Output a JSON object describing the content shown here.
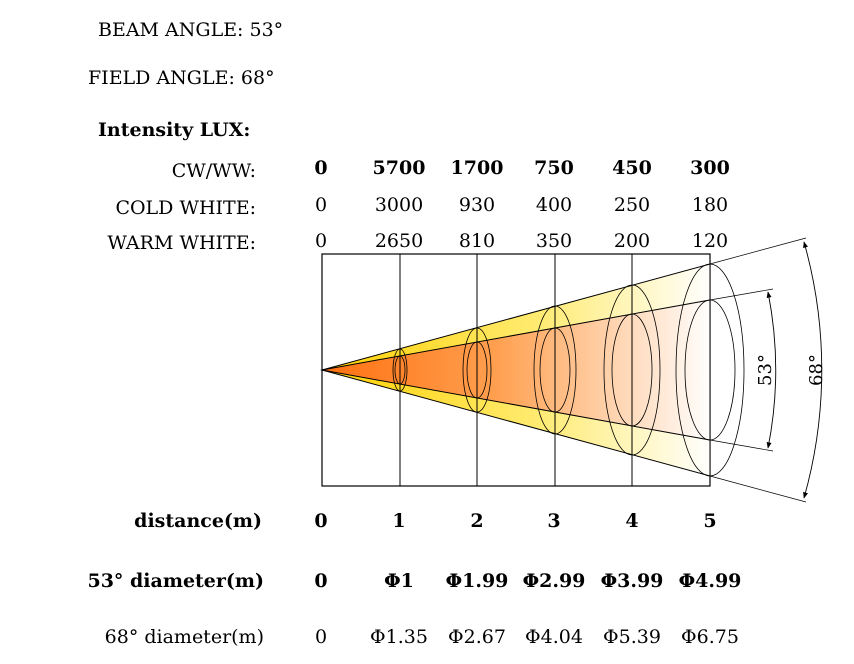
{
  "header": {
    "beam_angle": "BEAM ANGLE: 53°",
    "field_angle": "FIELD ANGLE: 68°",
    "intensity_title": "Intensity LUX:"
  },
  "intensity_table": {
    "rows": [
      {
        "label": "CW/WW:",
        "values": [
          "0",
          "5700",
          "1700",
          "750",
          "450",
          "300"
        ]
      },
      {
        "label": "COLD WHITE:",
        "values": [
          "0",
          "3000",
          "930",
          "400",
          "250",
          "180"
        ]
      },
      {
        "label": "WARM WHITE:",
        "values": [
          "0",
          "2650",
          "810",
          "350",
          "200",
          "120"
        ]
      }
    ]
  },
  "distance": {
    "label": "distance(m)",
    "values": [
      "0",
      "1",
      "2",
      "3",
      "4",
      "5"
    ]
  },
  "diameters": {
    "beam": {
      "label": "53° diameter(m)",
      "values": [
        "0",
        "Φ1",
        "Φ1.99",
        "Φ2.99",
        "Φ3.99",
        "Φ4.99"
      ]
    },
    "field": {
      "label": "68° diameter(m)",
      "values": [
        "0",
        "Φ1.35",
        "Φ2.67",
        "Φ4.04",
        "Φ5.39",
        "Φ6.75"
      ]
    }
  },
  "diagram": {
    "beam_angle_label": "53°",
    "field_angle_label": "68°",
    "colors": {
      "beam_core": "#ff7a1a",
      "field_halo": "#ffd400",
      "fade": "#ffffff"
    }
  }
}
